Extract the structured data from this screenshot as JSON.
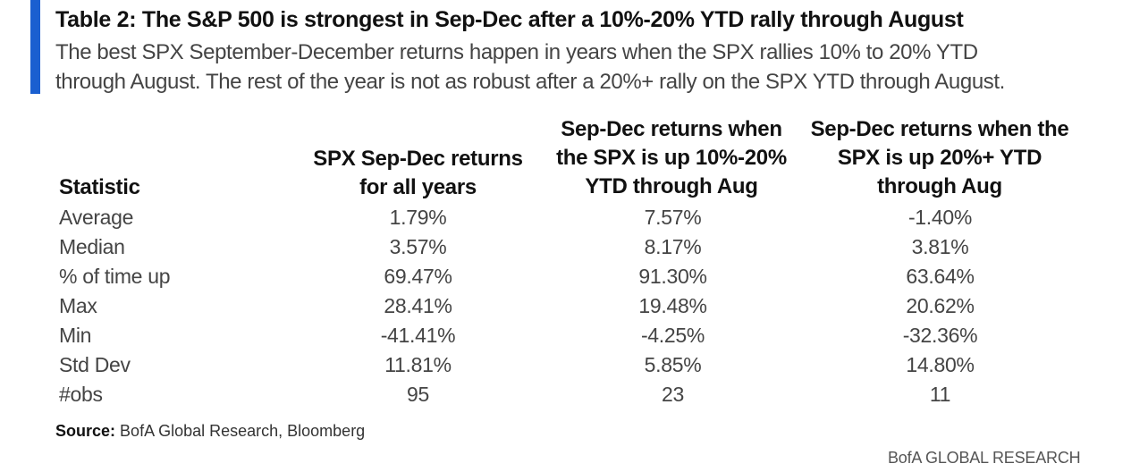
{
  "header": {
    "title": "Table 2: The S&P 500 is strongest in Sep-Dec after a 10%-20% YTD rally through August",
    "subtitle_line1": "The best SPX September-December returns happen in years when the SPX rallies 10% to 20% YTD",
    "subtitle_line2": "through August. The rest of the year is not as robust after a 20%+ rally on the SPX YTD through August."
  },
  "table": {
    "columns": {
      "statistic": "Statistic",
      "col1": [
        "SPX Sep-Dec returns",
        "for all years"
      ],
      "col2": [
        "Sep-Dec returns when",
        "the SPX is up 10%-20%",
        "YTD through Aug"
      ],
      "col3": [
        "Sep-Dec returns when the",
        "SPX is up 20%+ YTD",
        "through Aug"
      ]
    },
    "rows": [
      {
        "label": "Average",
        "all": "1.79%",
        "up10_20": "7.57%",
        "up20": "-1.40%"
      },
      {
        "label": "Median",
        "all": "3.57%",
        "up10_20": "8.17%",
        "up20": "3.81%"
      },
      {
        "label": "% of time up",
        "all": "69.47%",
        "up10_20": "91.30%",
        "up20": "63.64%"
      },
      {
        "label": "Max",
        "all": "28.41%",
        "up10_20": "19.48%",
        "up20": "20.62%"
      },
      {
        "label": "Min",
        "all": "-41.41%",
        "up10_20": "-4.25%",
        "up20": "-32.36%"
      },
      {
        "label": "Std Dev",
        "all": "11.81%",
        "up10_20": "5.85%",
        "up20": "14.80%"
      },
      {
        "label": "#obs",
        "all": "95",
        "up10_20": "23",
        "up20": "11"
      }
    ]
  },
  "footer": {
    "source_label": "Source:",
    "source_text": "BofA Global Research, Bloomberg",
    "brand": "BofA GLOBAL RESEARCH"
  },
  "colors": {
    "accent": "#1a5fd0"
  }
}
